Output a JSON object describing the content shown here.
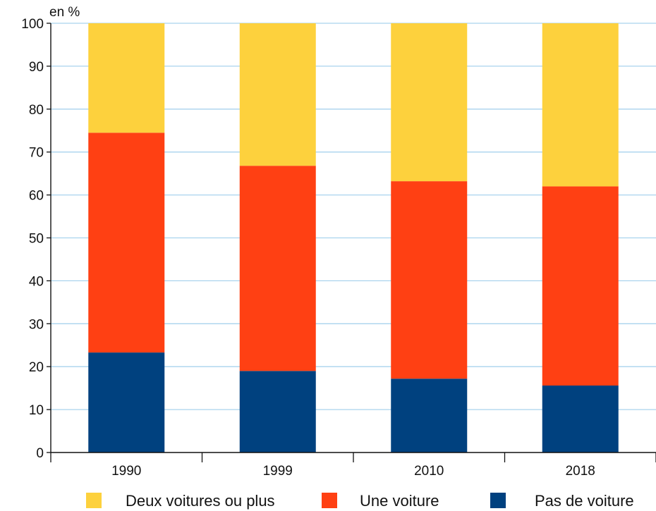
{
  "chart_data": {
    "type": "bar",
    "stacked": true,
    "unit_label": "en %",
    "categories": [
      "1990",
      "1999",
      "2010",
      "2018"
    ],
    "series": [
      {
        "name": "Pas de voiture",
        "color": "#00417f",
        "values": [
          23.3,
          19.0,
          17.2,
          15.6
        ]
      },
      {
        "name": "Une voiture",
        "color": "#ff4013",
        "values": [
          51.2,
          47.8,
          46.0,
          46.4
        ]
      },
      {
        "name": "Deux voitures ou plus",
        "color": "#fdd13d",
        "values": [
          25.5,
          33.2,
          36.8,
          38.0
        ]
      }
    ],
    "legend_order": [
      "Deux voitures ou plus",
      "Une voiture",
      "Pas de voiture"
    ],
    "yticks": [
      0,
      10,
      20,
      30,
      40,
      50,
      60,
      70,
      80,
      90,
      100
    ],
    "ylim": [
      0,
      100
    ],
    "grid": true,
    "grid_color": "#a9d3ee",
    "legend_position": "bottom"
  }
}
